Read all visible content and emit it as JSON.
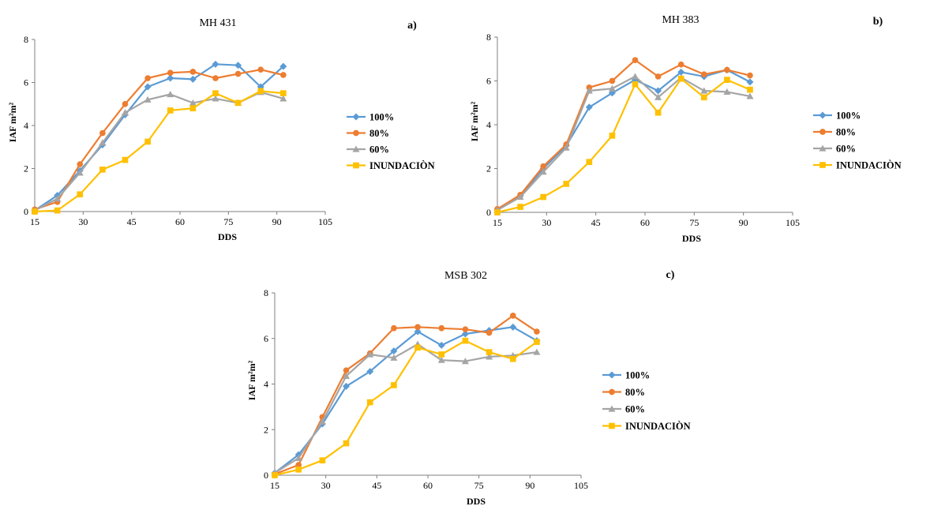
{
  "chart_data": [
    {
      "type": "line",
      "title": "MH 431",
      "panel_label": "a)",
      "xlabel": "DDS",
      "ylabel": "IAF m²m²",
      "xlim": [
        15,
        105
      ],
      "ylim": [
        0,
        8
      ],
      "xticks": [
        15,
        30,
        45,
        60,
        75,
        90,
        105
      ],
      "yticks": [
        0,
        2,
        4,
        6,
        8
      ],
      "grid": false,
      "legend_position": "right",
      "series": [
        {
          "name": "100%",
          "color": "#5B9BD5",
          "marker": "diamond",
          "x": [
            15,
            22,
            29,
            36,
            43,
            50,
            57,
            64,
            71,
            78,
            85,
            92
          ],
          "y": [
            0.05,
            0.75,
            1.9,
            3.1,
            4.5,
            5.8,
            6.2,
            6.15,
            6.85,
            6.8,
            5.8,
            6.75
          ]
        },
        {
          "name": "80%",
          "color": "#ED7D31",
          "marker": "circle",
          "x": [
            15,
            22,
            29,
            36,
            43,
            50,
            57,
            64,
            71,
            78,
            85,
            92
          ],
          "y": [
            0.1,
            0.45,
            2.2,
            3.65,
            5.0,
            6.2,
            6.45,
            6.5,
            6.2,
            6.4,
            6.6,
            6.35
          ]
        },
        {
          "name": "60%",
          "color": "#A5A5A5",
          "marker": "triangle",
          "x": [
            15,
            22,
            29,
            36,
            43,
            50,
            57,
            64,
            71,
            78,
            85,
            92
          ],
          "y": [
            0.05,
            0.6,
            1.8,
            3.2,
            4.6,
            5.2,
            5.45,
            5.05,
            5.25,
            5.05,
            5.55,
            5.25
          ]
        },
        {
          "name": "INUNDACIÒN",
          "color": "#FFC000",
          "marker": "square",
          "x": [
            15,
            22,
            29,
            36,
            43,
            50,
            57,
            64,
            71,
            78,
            85,
            92
          ],
          "y": [
            0.0,
            0.05,
            0.8,
            1.95,
            2.4,
            3.25,
            4.7,
            4.8,
            5.5,
            5.05,
            5.6,
            5.5
          ]
        }
      ]
    },
    {
      "type": "line",
      "title": "MH 383",
      "panel_label": "b)",
      "xlabel": "DDS",
      "ylabel": "IAF m²m²",
      "xlim": [
        15,
        105
      ],
      "ylim": [
        0,
        8
      ],
      "xticks": [
        15,
        30,
        45,
        60,
        75,
        90,
        105
      ],
      "yticks": [
        0,
        2,
        4,
        6,
        8
      ],
      "grid": false,
      "legend_position": "right",
      "series": [
        {
          "name": "100%",
          "color": "#5B9BD5",
          "marker": "diamond",
          "x": [
            15,
            22,
            29,
            36,
            43,
            50,
            57,
            64,
            71,
            78,
            85,
            92
          ],
          "y": [
            0.1,
            0.75,
            2.0,
            3.05,
            4.8,
            5.45,
            6.05,
            5.55,
            6.4,
            6.2,
            6.5,
            5.95
          ]
        },
        {
          "name": "80%",
          "color": "#ED7D31",
          "marker": "circle",
          "x": [
            15,
            22,
            29,
            36,
            43,
            50,
            57,
            64,
            71,
            78,
            85,
            92
          ],
          "y": [
            0.15,
            0.8,
            2.1,
            3.1,
            5.7,
            6.0,
            6.95,
            6.2,
            6.75,
            6.3,
            6.5,
            6.25
          ]
        },
        {
          "name": "60%",
          "color": "#A5A5A5",
          "marker": "triangle",
          "x": [
            15,
            22,
            29,
            36,
            43,
            50,
            57,
            64,
            71,
            78,
            85,
            92
          ],
          "y": [
            0.1,
            0.7,
            1.85,
            2.95,
            5.55,
            5.65,
            6.2,
            5.25,
            6.15,
            5.55,
            5.5,
            5.3
          ]
        },
        {
          "name": "INUNDACIÒN",
          "color": "#FFC000",
          "marker": "square",
          "x": [
            15,
            22,
            29,
            36,
            43,
            50,
            57,
            64,
            71,
            78,
            85,
            92
          ],
          "y": [
            0.0,
            0.25,
            0.7,
            1.3,
            2.3,
            3.5,
            5.85,
            4.55,
            6.1,
            5.25,
            6.05,
            5.6
          ]
        }
      ]
    },
    {
      "type": "line",
      "title": "MSB 302",
      "panel_label": "c)",
      "xlabel": "DDS",
      "ylabel": "IAF m²m²",
      "xlim": [
        15,
        105
      ],
      "ylim": [
        0,
        8
      ],
      "xticks": [
        15,
        30,
        45,
        60,
        75,
        90,
        105
      ],
      "yticks": [
        0,
        2,
        4,
        6,
        8
      ],
      "grid": false,
      "legend_position": "right",
      "series": [
        {
          "name": "100%",
          "color": "#5B9BD5",
          "marker": "diamond",
          "x": [
            15,
            22,
            29,
            36,
            43,
            50,
            57,
            64,
            71,
            78,
            85,
            92
          ],
          "y": [
            0.1,
            0.9,
            2.25,
            3.9,
            4.55,
            5.45,
            6.3,
            5.7,
            6.2,
            6.35,
            6.5,
            5.9
          ]
        },
        {
          "name": "80%",
          "color": "#ED7D31",
          "marker": "circle",
          "x": [
            15,
            22,
            29,
            36,
            43,
            50,
            57,
            64,
            71,
            78,
            85,
            92
          ],
          "y": [
            0.05,
            0.45,
            2.55,
            4.6,
            5.35,
            6.45,
            6.5,
            6.45,
            6.4,
            6.25,
            7.0,
            6.3
          ]
        },
        {
          "name": "60%",
          "color": "#A5A5A5",
          "marker": "triangle",
          "x": [
            15,
            22,
            29,
            36,
            43,
            50,
            57,
            64,
            71,
            78,
            85,
            92
          ],
          "y": [
            0.1,
            0.75,
            2.35,
            4.35,
            5.3,
            5.15,
            5.75,
            5.05,
            5.0,
            5.2,
            5.25,
            5.4
          ]
        },
        {
          "name": "INUNDACIÒN",
          "color": "#FFC000",
          "marker": "square",
          "x": [
            15,
            22,
            29,
            36,
            43,
            50,
            57,
            64,
            71,
            78,
            85,
            92
          ],
          "y": [
            0.0,
            0.25,
            0.65,
            1.4,
            3.2,
            3.95,
            5.6,
            5.3,
            5.9,
            5.4,
            5.1,
            5.85
          ]
        }
      ]
    }
  ]
}
